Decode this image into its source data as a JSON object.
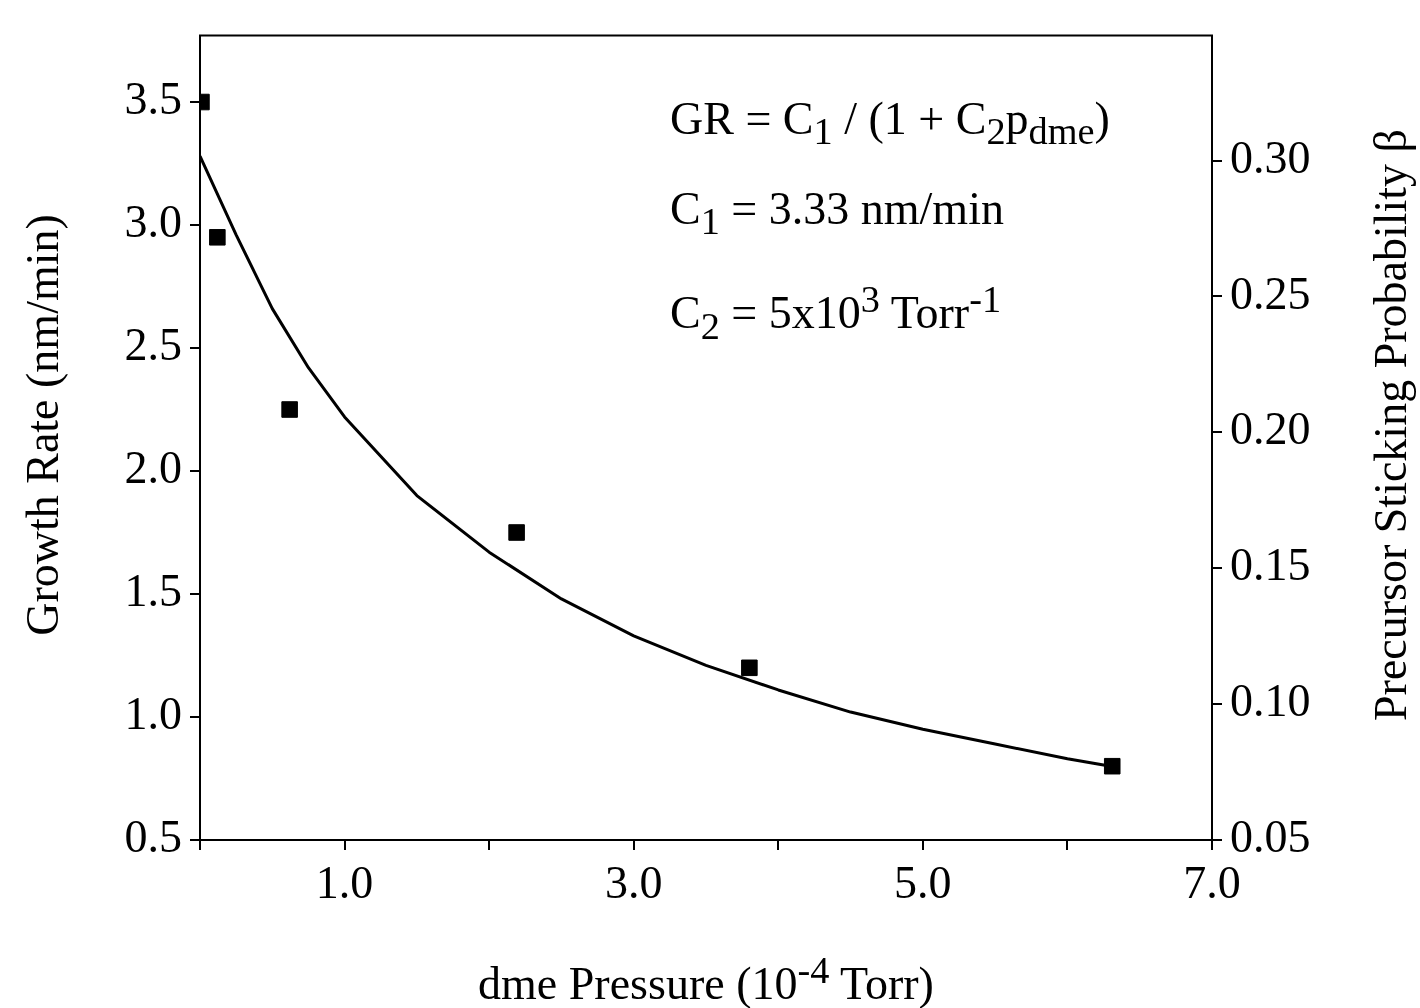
{
  "chart_data": {
    "type": "scatter",
    "xlabel": "dme Pressure (10$^{-4}$ Torr)",
    "ylabel": "Growth Rate (nm/min)",
    "y2label": "Precursor Sticking Probability β",
    "xlim": [
      0,
      7
    ],
    "xticks": [
      {
        "value": 0,
        "label": null
      },
      {
        "value": 1,
        "label": "1.0"
      },
      {
        "value": 2,
        "label": null
      },
      {
        "value": 3,
        "label": "3.0"
      },
      {
        "value": 4,
        "label": null
      },
      {
        "value": 5,
        "label": "5.0"
      },
      {
        "value": 6,
        "label": null
      },
      {
        "value": 7,
        "label": "7.0"
      }
    ],
    "ylim": [
      0.5,
      3.77
    ],
    "yticks": [
      0.5,
      {
        "value": 1,
        "label": "1.0"
      },
      1.5,
      {
        "value": 2,
        "label": "2.0"
      },
      2.5,
      {
        "value": 3,
        "label": "3.0"
      },
      3.5
    ],
    "y2lim": [
      0.05,
      0.346
    ],
    "y2ticks": [
      0.05,
      {
        "value": 0.1,
        "label": "0.10"
      },
      0.15,
      {
        "value": 0.2,
        "label": "0.20"
      },
      0.25,
      {
        "value": 0.3,
        "label": "0.30"
      }
    ],
    "series": [
      {
        "marker": "square",
        "color": "#000000",
        "x": [
          0.01,
          0.12,
          0.62,
          2.19,
          3.8,
          6.31
        ],
        "values": [
          3.5,
          2.95,
          2.25,
          1.75,
          1.2,
          0.8
        ]
      },
      {
        "type": "line",
        "color": "#000000",
        "x": [
          0,
          0.25,
          0.5,
          0.75,
          1,
          1.5,
          2,
          2.5,
          3,
          3.5,
          4,
          4.5,
          5,
          5.5,
          6,
          6.3
        ],
        "values": [
          3.28,
          2.96,
          2.66,
          2.42,
          2.22,
          1.9,
          1.67,
          1.48,
          1.33,
          1.21,
          1.11,
          1.02,
          0.95,
          0.89,
          0.83,
          0.8
        ]
      }
    ],
    "line_style": "solid",
    "grid": false,
    "legend": false,
    "annotations": [
      "GR = C$_{1}$ / (1 + C$_{2}$p$_{dme}$)",
      "C$_{1}$ = 3.33 nm/min",
      "C$_{2}$ = 5x10$^{3}$ Torr$^{-1}$"
    ]
  }
}
